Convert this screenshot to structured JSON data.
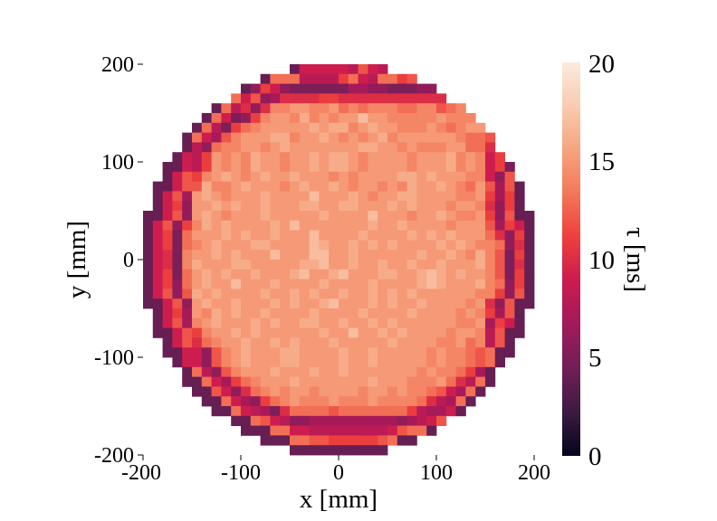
{
  "chart_data": {
    "type": "heatmap",
    "title": "",
    "xlabel": "x [mm]",
    "ylabel": "y [mm]",
    "xlim": [
      -200,
      200
    ],
    "ylim": [
      -200,
      200
    ],
    "x_ticks": [
      -200,
      -100,
      0,
      100,
      200
    ],
    "y_ticks": [
      200,
      100,
      0,
      -100,
      -200
    ],
    "x_tick_labels": [
      "-200",
      "-100",
      "0",
      "100",
      "200"
    ],
    "y_tick_labels": [
      "200",
      "100",
      "0",
      "-100",
      "-200"
    ],
    "grid": false,
    "bin_size_mm": 10,
    "colorbar": {
      "label": "τ [ms]",
      "range": [
        0,
        20
      ],
      "ticks": [
        0,
        5,
        10,
        15,
        20
      ],
      "tick_labels": [
        "0",
        "5",
        "10",
        "15",
        "20"
      ],
      "colormap": "rocket",
      "colormap_stops": [
        "#03051a",
        "#3c1a42",
        "#701f57",
        "#a11a5b",
        "#cb1b4f",
        "#ed3f3d",
        "#f3775a",
        "#f6a47f",
        "#f9cbb0",
        "#faebdd"
      ]
    },
    "rows": [
      "-------------------------------------------",
      "------------------------------------------",
      "------------------------------------------",
      "--------------------------------------------",
      "---------------CBBAAAAAAAAB----------------",
      "---------CBA999998888889999AB-----------------",
      "---------------------------------------------------",
      "---------------------------------------------------",
      "-------------------------------------------------",
      "-------------------------------------------------"
    ],
    "values": [
      "                 9999898C98DDCDCDC         ",
      "              DDD88888BD98DDBCCBBBBB       ",
      "            6B 6655555577665555666666C      ",
      "          D9C67AAAAABBAAAAAAAAAAAABBA96C    ",
      "         D8A6AEEEFFEEFDEDEEEEDDEECDEDD9C8   ",
      "        D956BEFFFEGEFEFFHFFFEEEEEFEEEDB95D  ",
      "       D85BDEFFFFFFGFGGEFGFFFEEEFEDEFFDB9D  ",
      "      D97CEFFFGGFEFFGFEFEFGEEFFFFFFEDDFC7D  ",
      "     C86DEEFFEFGGFFFFFFFGGFEFEFEEEFFDDCA5C  ",
      "     B8BFEFEGFFEFFFGFGGFEFFEFFEFFFGEFED9B5  ",
      "    C7BEFGFEFGFFFGFFFEFEFFFFFGGFGFFFEEF96C  ",
      "    C6CGEEFGFFFEGFGFFGFEFFEFFEGFFGFEDFEC7C  ",
      "   C7CFGFEFFFGFFGFFHFFFGFEFFFGGFFFFEEFEB7B  ",
      "   B6DFFGFGFFGFFFFGGFFGGFFFFGFGFFFEFFEEA6B  ",
      "   C6DFGFEFFFGFFGFFFGFFFFHFFFFEFFGFEEFEB6C  ",
      "  C6BFEGFGFFFFGFFHFFFFFFFGFGFGFFFFEFFFEC7B  ",
      "  B5DEFFFGFGFFGFFFFHFFFFGFFFFFGFGFGFFFEDA6B ",
      "  B5DFEFGFFFGGFFFFFHGFFGFGFFGFFFFGFGFEFED6A ",
      "  A5EFFFGFGFFFHFFFFHHFFGFFFGFFFGFFGFEGFEC5B ",
      "  A5EFGFFFGGFFFFGFGGHFFGFFGFFFGFFGFFFGFEC5A ",
      "  B5DFFGFGFFGFFFFGHFFGHFFFGFGFFGHGFGFFFEC5B ",
      "  B6DEFGFFHFFFGFFFFFGFFFFGFFFFFGHGFFFGFED6B ",
      "  C6CFGFGFFFFGFFFGFGFFGFFGFFGFGFFFFFFEFEB6C ",
      "   C6DFGFFGFFFGFFGFFGHFFFGFFGFFGFFFFEFDA6C  ",
      "   B7CFEGFGFFGFFGFFGFFFFGFFFFFGFFFFEFEEB7C  ",
      "   C7BEFGFFFGFGFFFGGFFGFFGFFGFFFFFFEEFB7B   ",
      "    C8BEFFGFGFFFGFFFGFFHFFGFFGFFFFEFFEA8C   ",
      "    C8ADEFFGFFGFFGFFFGFFFFFFGFFFFEEFDE98C   ",
      "     C96CEFGFFFGFGFFFFGFFGFFFFFFEFEEDC8D    ",
      "      D86CEFFFGFFFFGFFGFFFFFFFFEFEEDB7D     ",
      "       D97BDEFFFFGFFFFFFFGFFFFEEEFDA8D      ",
      "        C96ADEFEFFFEFFFFEFFEEFEEDC97D       ",
      "         D976BDEEFEEEFEEEFEEEEEDA87D        ",
      "          D9875ACDDDDCDDDDDCDDB8779         ",
      "            DC9876677777777776789CD         ",
      "              DDC998888888889CDD            ",
      "                 DDCCBBBBBCDD               ",
      "                                            "
    ],
    "value_encoding": "A=10,B=11,C=12,D=13,E=14,F=15,G=16,H=17; digits = value"
  }
}
